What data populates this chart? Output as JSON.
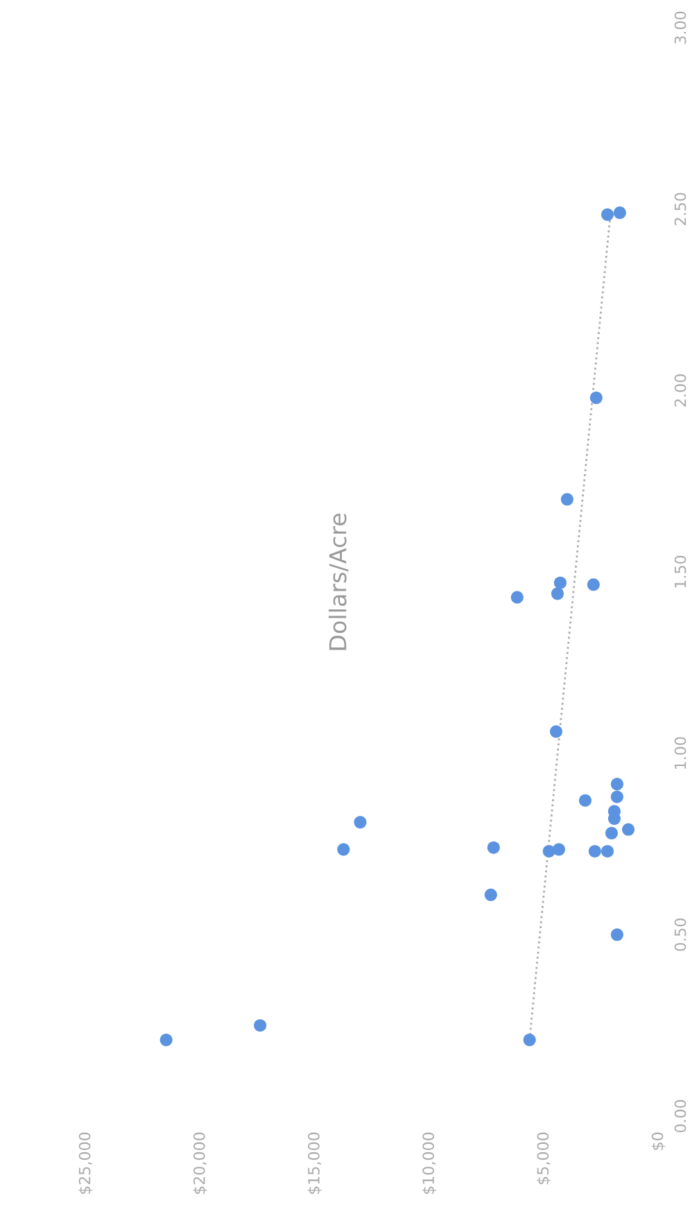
{
  "chart_data": {
    "type": "scatter",
    "title": "Dollars/Acre",
    "series": [
      {
        "marker": "circle",
        "color": "#5b93e0",
        "x": [
          21500,
          17400,
          5640,
          1820,
          7330,
          7210,
          13760,
          13030,
          4480,
          1820,
          3210,
          1820,
          1940,
          1940,
          2060,
          1330,
          4790,
          4360,
          2790,
          2240,
          2240,
          1700,
          2730,
          4000,
          4300,
          4420,
          2850,
          6180
        ],
        "values": [
          0.21,
          0.25,
          0.21,
          0.5,
          0.61,
          0.74,
          0.735,
          0.81,
          1.06,
          0.915,
          0.87,
          0.88,
          0.84,
          0.82,
          0.78,
          0.79,
          0.73,
          0.735,
          0.73,
          0.73,
          2.485,
          2.49,
          1.98,
          1.7,
          1.47,
          1.44,
          1.465,
          1.43
        ]
      },
      {
        "type": "line",
        "color": "#aaaaaa",
        "line_style": "dotted",
        "x": [
          5640,
          2120
        ],
        "values": [
          0.21,
          2.48
        ]
      }
    ],
    "ylim": [
      0,
      3
    ],
    "yticks": [
      {
        "value": 0,
        "label": "0.00"
      },
      {
        "value": 0.5,
        "label": "0.50"
      },
      {
        "value": 1,
        "label": "1.00"
      },
      {
        "value": 1.5,
        "label": "1.50"
      },
      {
        "value": 2,
        "label": "2.00"
      },
      {
        "value": 2.5,
        "label": "2.50"
      },
      {
        "value": 3,
        "label": "3.00"
      }
    ],
    "xlim": [
      25000,
      0
    ],
    "xticks": [
      {
        "value": 0,
        "label": "$0"
      },
      {
        "value": 5000,
        "label": "$5,000"
      },
      {
        "value": 10000,
        "label": "$10,000"
      },
      {
        "value": 15000,
        "label": "$15,000"
      },
      {
        "value": 20000,
        "label": "$20,000"
      },
      {
        "value": 25000,
        "label": "$25,000"
      }
    ],
    "grid": false,
    "legend": false
  }
}
